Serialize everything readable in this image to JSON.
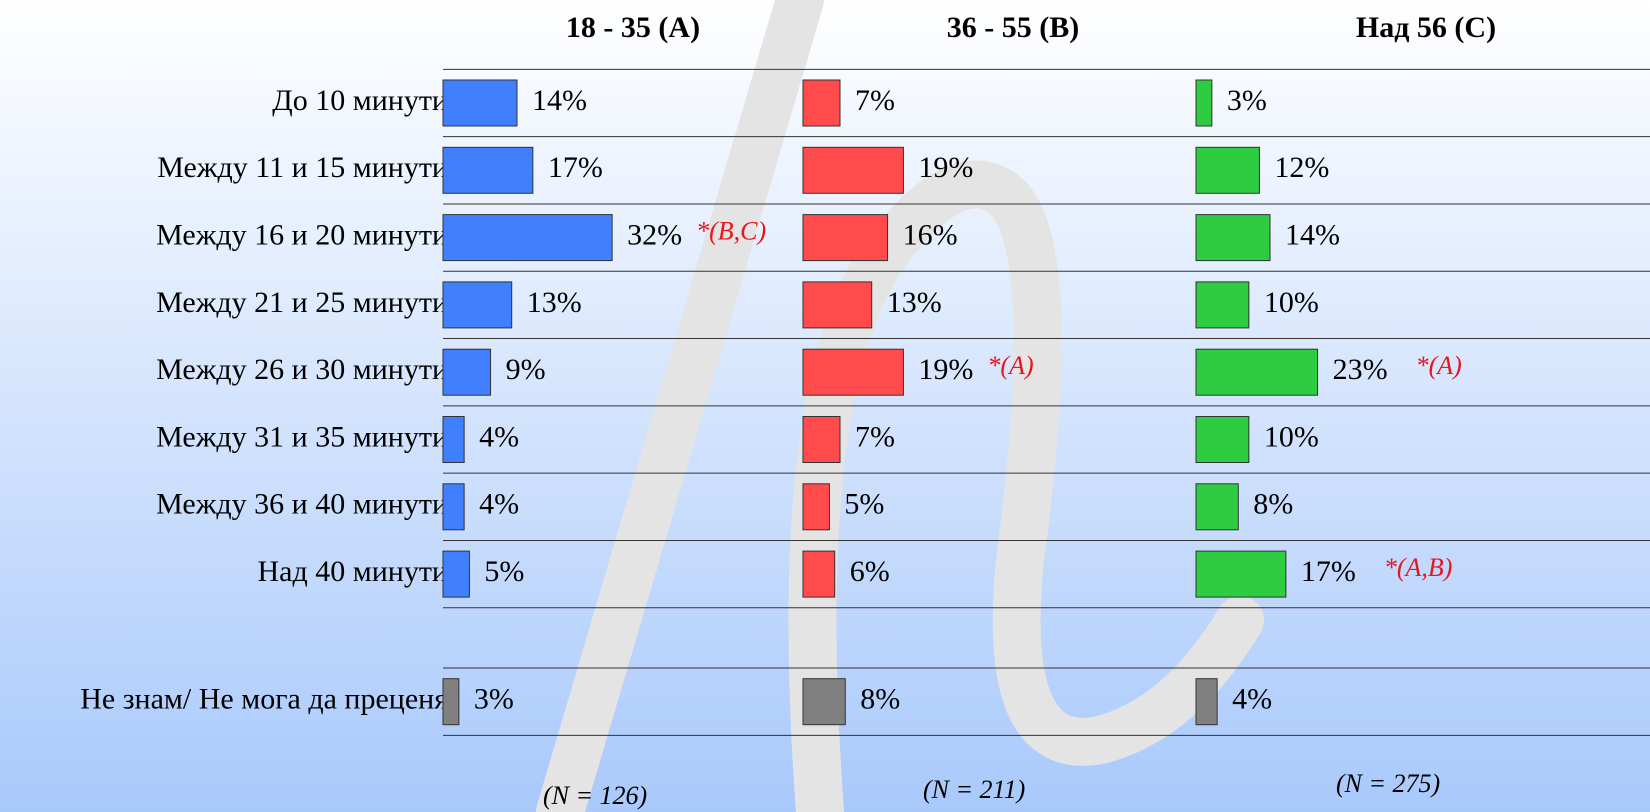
{
  "chart_data": {
    "type": "bar",
    "categories": [
      "До 10 минути",
      "Между 11 и 15 минути",
      "Между 16 и 20 минути",
      "Между 21 и 25 минути",
      "Между 26 и 30 минути",
      "Между 31 и 35 минути",
      "Между 36 и 40 минути",
      "Над 40 минути",
      "Не знам/ Не мога да преценя"
    ],
    "xlim": [
      0,
      70
    ],
    "last_color": "#808080",
    "series": [
      {
        "name": "18 - 35 (A)",
        "color": "#4080ff",
        "values": [
          14,
          17,
          32,
          13,
          9,
          4,
          4,
          5,
          3
        ],
        "value_labels": [
          "14%",
          "17%",
          "32%",
          "13%",
          "9%",
          "4%",
          "4%",
          "5%",
          "3%"
        ],
        "annotations": [
          null,
          null,
          "*(B,C)",
          null,
          null,
          null,
          null,
          null,
          null
        ],
        "note": "(N = 126)"
      },
      {
        "name": "36 - 55 (B)",
        "color": "#ff4b4b",
        "values": [
          7,
          19,
          16,
          13,
          19,
          7,
          5,
          6,
          8
        ],
        "value_labels": [
          "7%",
          "19%",
          "16%",
          "13%",
          "19%",
          "7%",
          "5%",
          "6%",
          "8%"
        ],
        "annotations": [
          null,
          null,
          null,
          null,
          "*(A)",
          null,
          null,
          null,
          null
        ],
        "note": "(N = 211)"
      },
      {
        "name": "Над 56 (C)",
        "color": "#2ecc40",
        "values": [
          3,
          12,
          14,
          10,
          23,
          10,
          8,
          17,
          4
        ],
        "value_labels": [
          "3%",
          "12%",
          "14%",
          "10%",
          "23%",
          "10%",
          "8%",
          "17%",
          "4%"
        ],
        "annotations": [
          null,
          null,
          null,
          null,
          "*(A)",
          null,
          null,
          "*(A,B)",
          null
        ],
        "note": "(N = 275)"
      }
    ]
  }
}
